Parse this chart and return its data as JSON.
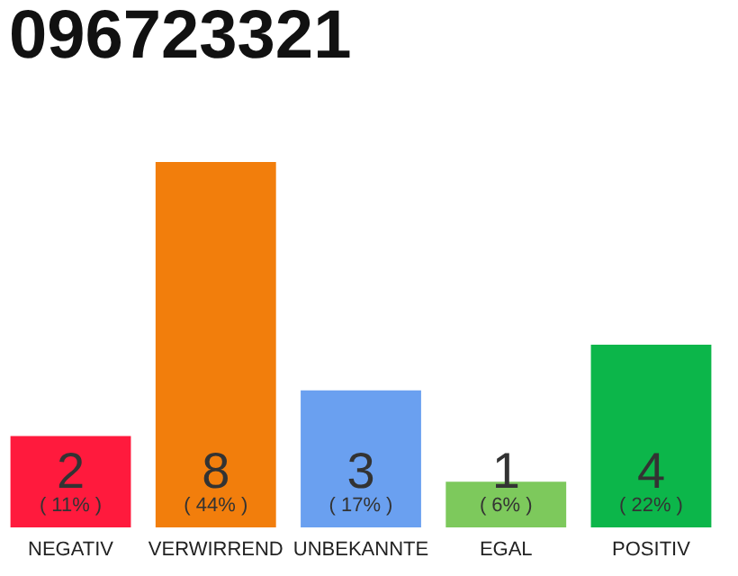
{
  "chart_data": {
    "type": "bar",
    "title": "096723321",
    "categories": [
      "NEGATIV",
      "VERWIRREND",
      "UNBEKANNTE",
      "EGAL",
      "POSITIV"
    ],
    "values": [
      2,
      8,
      3,
      1,
      4
    ],
    "colors": [
      "#ff1a3d",
      "#f27e0c",
      "#6aa0f0",
      "#7dc95c",
      "#0cb64a"
    ],
    "data_labels": true,
    "annotations": [
      "( 11% )",
      "( 44% )",
      "( 17% )",
      "( 6% )",
      "( 22% )"
    ],
    "grid": false
  }
}
